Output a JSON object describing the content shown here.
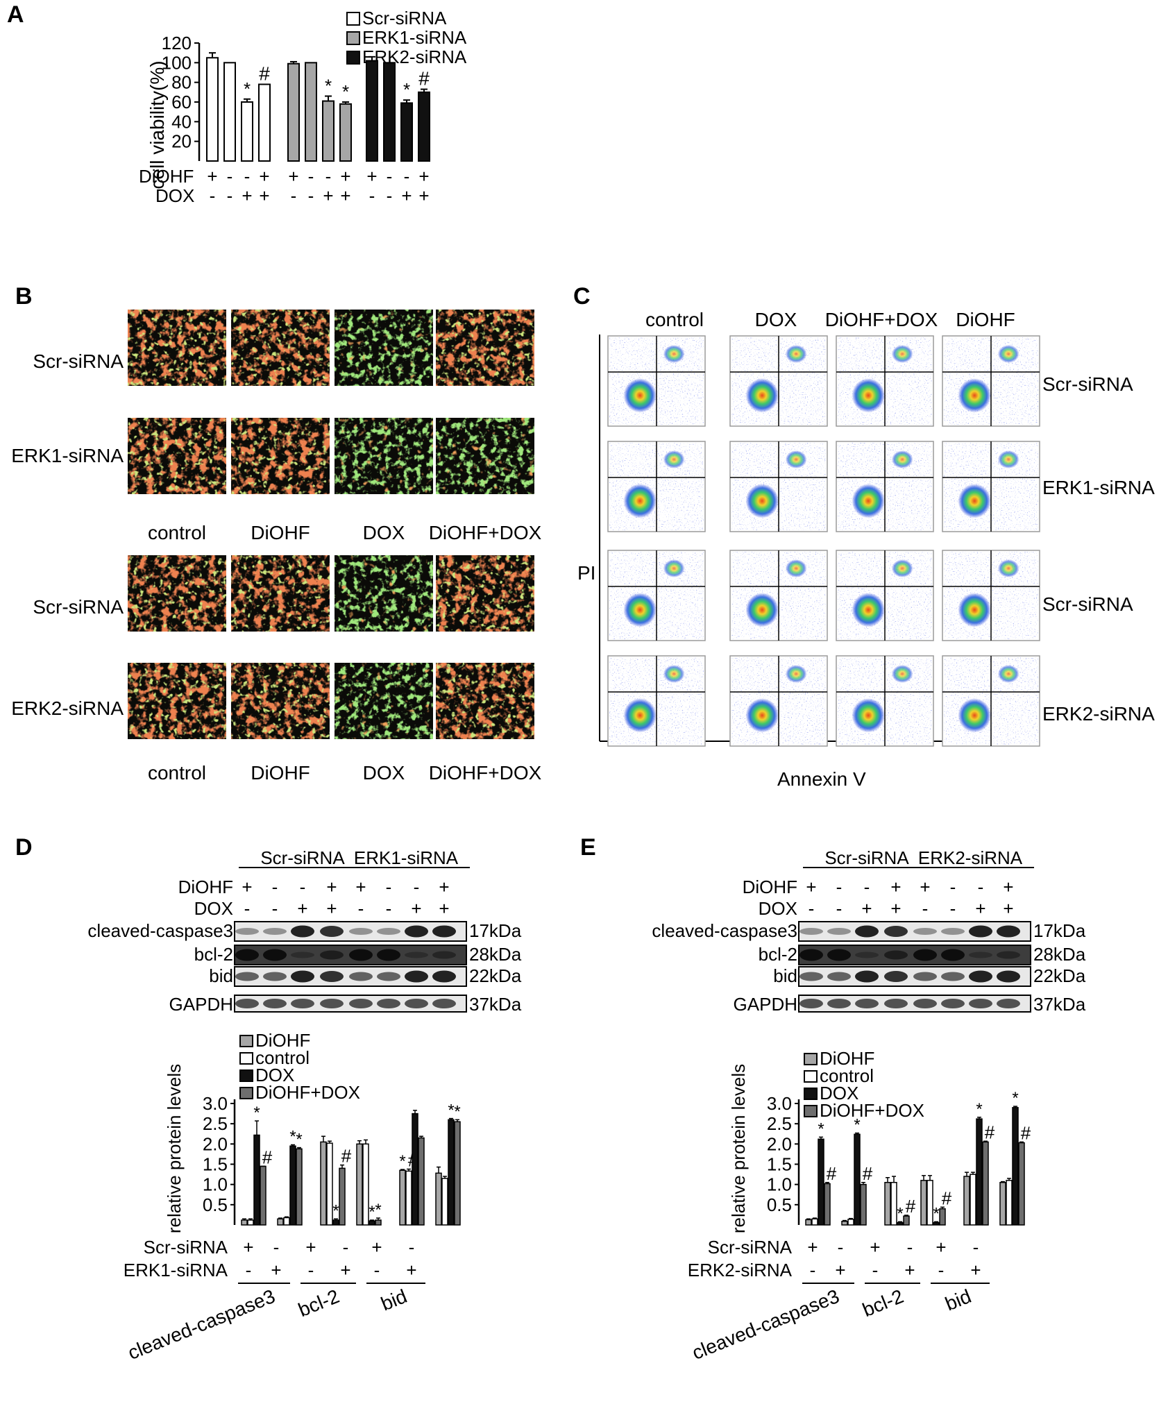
{
  "panels": {
    "A": {
      "letter": "A",
      "legend": [
        "Scr-siRNA",
        "ERK1-siRNA",
        "ERK2-siRNA"
      ],
      "ylabel": "cell viability(%)",
      "yticks": [
        "120",
        "100",
        "80",
        "60",
        "40",
        "20"
      ],
      "row_labels": [
        "DiOHF",
        "DOX"
      ],
      "diohf_signs": [
        "+",
        "-",
        "-",
        "+",
        "+",
        "-",
        "-",
        "+",
        "+",
        "-",
        "-",
        "+"
      ],
      "dox_signs": [
        "-",
        "-",
        "+",
        "+",
        "-",
        "-",
        "+",
        "+",
        "-",
        "-",
        "+",
        "+"
      ],
      "bar_marks": [
        "",
        "",
        "*",
        "#",
        "",
        "",
        "*",
        "*",
        "",
        "",
        "*",
        "#"
      ]
    },
    "B": {
      "letter": "B",
      "row_labels": [
        "Scr-siRNA",
        "ERK1-siRNA",
        "Scr-siRNA",
        "ERK2-siRNA"
      ],
      "col_labels": [
        "control",
        "DiOHF",
        "DOX",
        "DiOHF+DOX"
      ]
    },
    "C": {
      "letter": "C",
      "col_labels": [
        "control",
        "DOX",
        "DiOHF+DOX",
        "DiOHF"
      ],
      "row_labels": [
        "Scr-siRNA",
        "ERK1-siRNA",
        "Scr-siRNA",
        "ERK2-siRNA"
      ],
      "ylabel": "PI",
      "xlabel": "Annexin V"
    },
    "D": {
      "letter": "D",
      "group_headers": [
        "Scr-siRNA",
        "ERK1-siRNA"
      ],
      "row_labels": [
        "DiOHF",
        "DOX"
      ],
      "diohf_signs": [
        "+",
        "-",
        "-",
        "+",
        "+",
        "-",
        "-",
        "+"
      ],
      "dox_signs": [
        "-",
        "-",
        "+",
        "+",
        "-",
        "-",
        "+",
        "+"
      ],
      "blots": [
        "cleaved-caspase3",
        "bcl-2",
        "bid",
        "GAPDH"
      ],
      "sizes": [
        "17kDa",
        "28kDa",
        "22kDa",
        "37kDa"
      ],
      "legend": [
        "DiOHF",
        "control",
        "DOX",
        "DiOHF+DOX"
      ],
      "ylabel": "relative protein levels",
      "yticks": [
        "3.0",
        "2.5",
        "2.0",
        "1.5",
        "1.0",
        "0.5"
      ],
      "sirna_labels": [
        "Scr-siRNA",
        "ERK1-siRNA"
      ],
      "scr_signs": [
        "+",
        "-",
        "+",
        "-",
        "+",
        "-"
      ],
      "erk_signs": [
        "-",
        "+",
        "-",
        "+",
        "-",
        "+"
      ],
      "proteins": [
        "cleaved-caspase3",
        "bcl-2",
        "bid"
      ]
    },
    "E": {
      "letter": "E",
      "group_headers": [
        "Scr-siRNA",
        "ERK2-siRNA"
      ],
      "row_labels": [
        "DiOHF",
        "DOX"
      ],
      "diohf_signs": [
        "+",
        "-",
        "-",
        "+",
        "+",
        "-",
        "-",
        "+"
      ],
      "dox_signs": [
        "-",
        "-",
        "+",
        "+",
        "-",
        "-",
        "+",
        "+"
      ],
      "blots": [
        "cleaved-caspase3",
        "bcl-2",
        "bid",
        "GAPDH"
      ],
      "sizes": [
        "17kDa",
        "28kDa",
        "22kDa",
        "37kDa"
      ],
      "legend": [
        "DiOHF",
        "control",
        "DOX",
        "DiOHF+DOX"
      ],
      "ylabel": "relative protein levels",
      "yticks": [
        "3.0",
        "2.5",
        "2.0",
        "1.5",
        "1.0",
        "0.5"
      ],
      "sirna_labels": [
        "Scr-siRNA",
        "ERK2-siRNA"
      ],
      "scr_signs": [
        "+",
        "-",
        "+",
        "-",
        "+",
        "-"
      ],
      "erk_signs": [
        "-",
        "+",
        "-",
        "+",
        "-",
        "+"
      ],
      "proteins": [
        "cleaved-caspase3",
        "bcl-2",
        "bid"
      ]
    }
  },
  "colors": {
    "bar_white": "#ffffff",
    "bar_gray": "#a6a6a6",
    "bar_black": "#111111",
    "bar_darkgray": "#6e6e6e",
    "mito_red": "#d8361c",
    "mito_green": "#6cc23a",
    "flow_blue": "#2b3fd6"
  },
  "chart_data": [
    {
      "type": "bar",
      "panel": "A",
      "ylabel": "cell viability(%)",
      "ylim": [
        0,
        120
      ],
      "series": [
        {
          "name": "Scr-siRNA",
          "values": [
            105,
            100,
            60,
            78
          ],
          "errors": [
            5,
            0,
            3,
            0
          ]
        },
        {
          "name": "ERK1-siRNA",
          "values": [
            99,
            100,
            61,
            58
          ],
          "errors": [
            2,
            0,
            5,
            2
          ]
        },
        {
          "name": "ERK2-siRNA",
          "values": [
            102,
            100,
            59,
            70
          ],
          "errors": [
            4,
            0,
            3,
            3
          ]
        }
      ]
    },
    {
      "type": "bar",
      "panel": "D",
      "ylabel": "relative protein levels",
      "ylim": [
        0,
        3.0
      ],
      "groups": [
        {
          "marks": [
            "",
            "",
            "*",
            "#"
          ],
          "values": [
            0.12,
            0.12,
            2.22,
            1.45
          ],
          "errors": [
            0.03,
            0.03,
            0.35,
            0
          ]
        },
        {
          "marks": [
            "",
            "",
            "*",
            "*"
          ],
          "values": [
            0.15,
            0.18,
            1.95,
            1.88
          ],
          "errors": [
            0.02,
            0.02,
            0.03,
            0.03
          ]
        },
        {
          "marks": [
            "",
            "",
            "*",
            "#"
          ],
          "values": [
            2.05,
            2.02,
            0.12,
            1.4
          ],
          "errors": [
            0.14,
            0.05,
            0.03,
            0.08
          ]
        },
        {
          "marks": [
            "",
            "",
            "*",
            "*"
          ],
          "values": [
            2.0,
            2.0,
            0.1,
            0.12
          ],
          "errors": [
            0.08,
            0.1,
            0.02,
            0.05
          ]
        },
        {
          "marks": [
            "*",
            "#",
            "",
            ""
          ],
          "values": [
            1.35,
            1.33,
            2.75,
            2.15
          ],
          "errors": [
            0.02,
            0.05,
            0.08,
            0.04
          ]
        },
        {
          "marks": [
            "",
            "",
            "*",
            "*"
          ],
          "values": [
            1.28,
            1.15,
            2.6,
            2.55
          ],
          "errors": [
            0.15,
            0.05,
            0.03,
            0.05
          ]
        }
      ]
    },
    {
      "type": "bar",
      "panel": "E",
      "ylabel": "relative protein levels",
      "ylim": [
        0,
        3.0
      ],
      "groups": [
        {
          "marks": [
            "",
            "",
            "*",
            "#"
          ],
          "values": [
            0.13,
            0.15,
            2.12,
            1.02
          ],
          "errors": [
            0.02,
            0.02,
            0.05,
            0.03
          ]
        },
        {
          "marks": [
            "",
            "",
            "*",
            "#"
          ],
          "values": [
            0.09,
            0.14,
            2.24,
            1.0
          ],
          "errors": [
            0.02,
            0.02,
            0.03,
            0.05
          ]
        },
        {
          "marks": [
            "",
            "",
            "*",
            "#"
          ],
          "values": [
            1.05,
            1.05,
            0.06,
            0.22
          ],
          "errors": [
            0.12,
            0.15,
            0.02,
            0.02
          ]
        },
        {
          "marks": [
            "",
            "",
            "*",
            "#"
          ],
          "values": [
            1.1,
            1.1,
            0.06,
            0.4
          ],
          "errors": [
            0.12,
            0.12,
            0.02,
            0.04
          ]
        },
        {
          "marks": [
            "",
            "",
            "*",
            "#"
          ],
          "values": [
            1.2,
            1.25,
            2.62,
            2.05
          ],
          "errors": [
            0.1,
            0.05,
            0.04,
            0.02
          ]
        },
        {
          "marks": [
            "",
            "",
            "*",
            "#"
          ],
          "values": [
            1.05,
            1.1,
            2.9,
            2.03
          ],
          "errors": [
            0.02,
            0.05,
            0.03,
            0.02
          ]
        }
      ]
    }
  ]
}
